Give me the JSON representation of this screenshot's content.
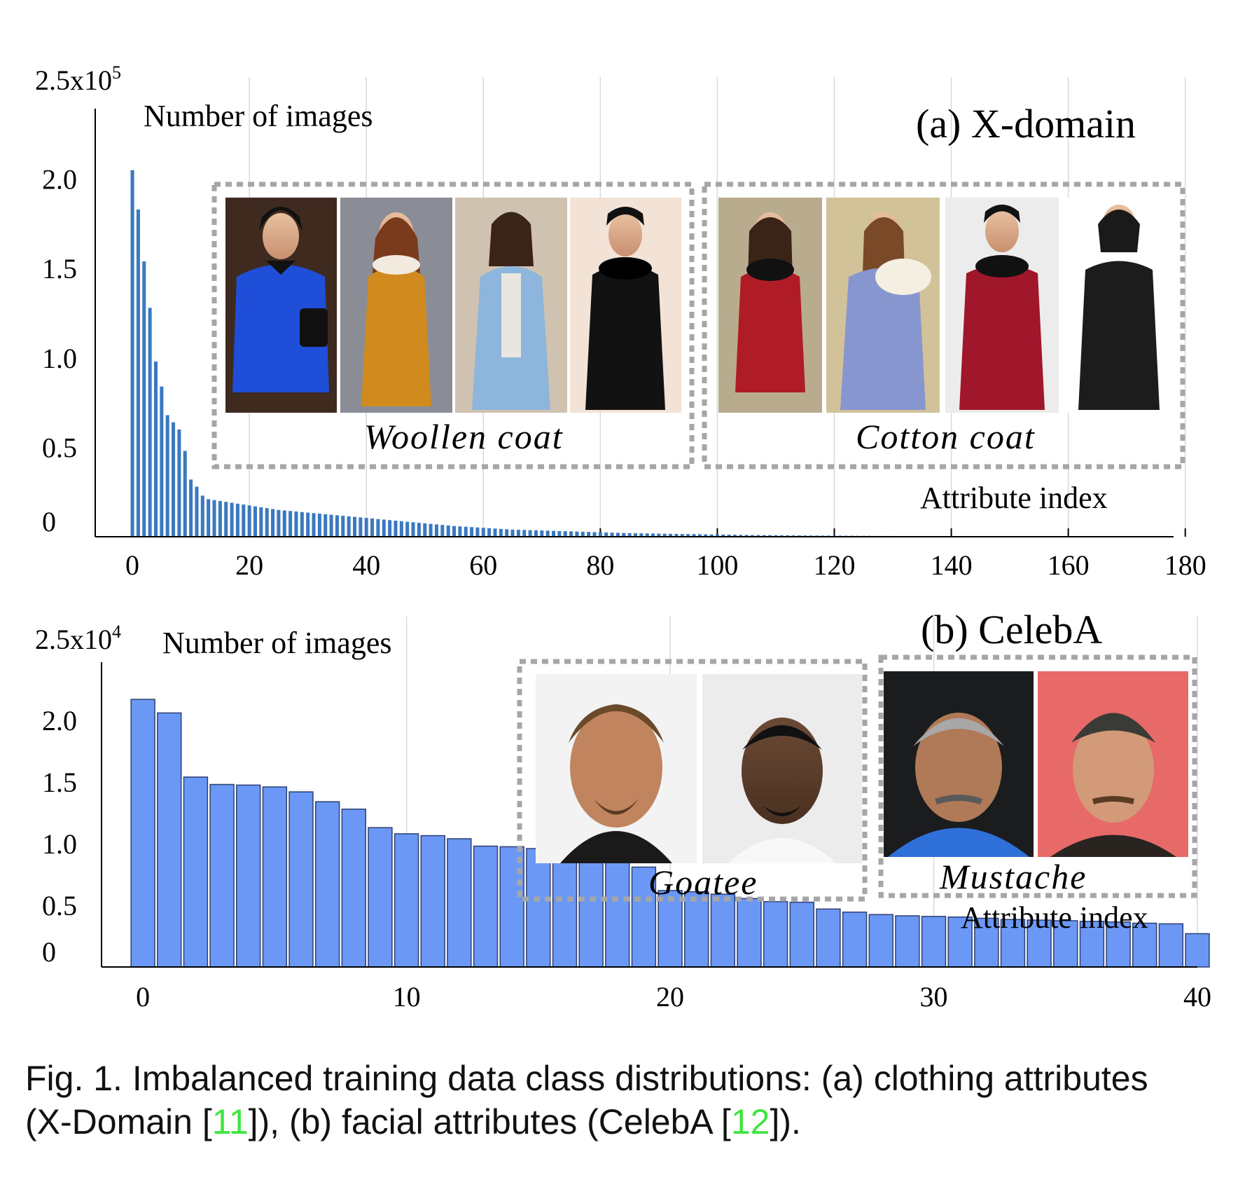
{
  "colors": {
    "bar_a": "#3a78bf",
    "bar_b": "#6b98f5",
    "bar_b_stroke": "#2d3f73",
    "grid": "#d9d9d9",
    "box_dash": "#a6a6a6",
    "citation": "#3ee63e"
  },
  "chart_data": [
    {
      "id": "a",
      "type": "bar",
      "title": "(a) X-domain",
      "ylabel": "Number of images",
      "xlabel": "Attribute index",
      "y_max_label_base": "2.5x10",
      "y_max_label_exp": "5",
      "yticks": [
        "0",
        "0.5",
        "1.0",
        "1.5",
        "2.0"
      ],
      "ylim": [
        0,
        250000
      ],
      "xticks": [
        "0",
        "20",
        "40",
        "60",
        "80",
        "100",
        "120",
        "140",
        "160",
        "180"
      ],
      "xlim": [
        -3,
        178
      ],
      "grid": "vertical",
      "values": [
        205000,
        183000,
        154000,
        128000,
        98000,
        84000,
        68000,
        64000,
        60000,
        48000,
        32000,
        28000,
        23000,
        21000,
        20500,
        20000,
        19500,
        19000,
        18500,
        18000,
        17500,
        17000,
        16500,
        16000,
        15500,
        15000,
        14700,
        14400,
        14100,
        13800,
        13500,
        13200,
        12900,
        12600,
        12300,
        12000,
        11700,
        11400,
        11100,
        10800,
        10500,
        10200,
        9900,
        9600,
        9300,
        9000,
        8700,
        8400,
        8100,
        7800,
        7500,
        7200,
        6900,
        6600,
        6300,
        6000,
        5800,
        5600,
        5400,
        5200,
        5000,
        4800,
        4600,
        4400,
        4200,
        4000,
        3900,
        3800,
        3700,
        3600,
        3500,
        3400,
        3300,
        3200,
        3100,
        3000,
        2900,
        2800,
        2700,
        2600,
        2500,
        2400,
        2300,
        2200,
        2100,
        2000,
        1950,
        1900,
        1850,
        1800,
        1750,
        1700,
        1650,
        1600,
        1550,
        1500,
        1450,
        1400,
        1350,
        1300,
        1250,
        1200,
        1150,
        1100,
        1050,
        1000,
        970,
        940,
        910,
        880,
        850,
        820,
        790,
        760,
        730,
        700,
        680,
        660,
        640,
        620,
        600,
        580,
        560,
        540,
        520,
        500,
        480,
        460,
        440,
        420,
        400,
        385,
        370,
        355,
        340,
        325,
        310,
        295,
        280,
        265,
        250,
        240,
        230,
        220,
        210,
        200,
        190,
        180,
        170,
        160,
        150,
        145,
        140,
        135,
        130,
        125,
        120,
        115,
        110,
        105,
        100,
        95,
        90,
        85,
        80,
        75,
        70,
        65,
        60,
        55
      ],
      "insets": [
        {
          "label": "Woollen coat"
        },
        {
          "label": "Cotton coat"
        }
      ]
    },
    {
      "id": "b",
      "type": "bar",
      "title": "(b) CelebA",
      "ylabel": "Number of images",
      "xlabel": "Attribute index",
      "y_max_label_base": "2.5x10",
      "y_max_label_exp": "4",
      "yticks": [
        "0",
        "0.5",
        "1.0",
        "1.5",
        "2.0"
      ],
      "ylim": [
        0,
        25000
      ],
      "xticks": [
        "0",
        "10",
        "20",
        "30",
        "40"
      ],
      "xlim": [
        -0.8,
        40
      ],
      "grid": "vertical",
      "values": [
        21700,
        20600,
        15400,
        14800,
        14750,
        14600,
        14200,
        13400,
        12800,
        11300,
        10800,
        10650,
        10400,
        9800,
        9750,
        9600,
        9200,
        9100,
        9100,
        8100,
        6200,
        6100,
        5900,
        5550,
        5300,
        5250,
        4700,
        4450,
        4250,
        4150,
        4100,
        4050,
        3950,
        3850,
        3800,
        3750,
        3700,
        3650,
        3550,
        3500,
        2700
      ],
      "insets": [
        {
          "label": "Goatee"
        },
        {
          "label": "Mustache"
        }
      ]
    }
  ],
  "caption": {
    "line1": "Fig. 1. Imbalanced training data class distributions: (a) clothing attributes",
    "line2_pre": "(X-Domain [",
    "cite1": "11",
    "line2_mid": "]), (b) facial attributes (CelebA [",
    "cite2": "12",
    "line2_post": "])."
  }
}
